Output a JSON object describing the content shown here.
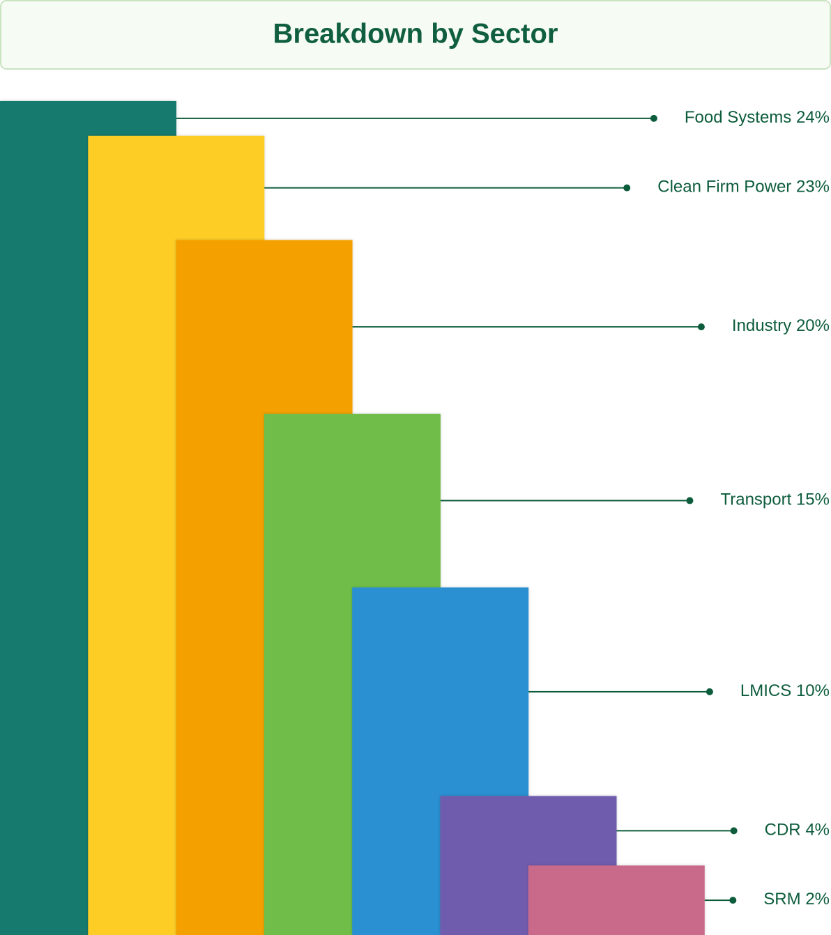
{
  "chart_data": {
    "type": "bar",
    "title": "Breakdown by Sector",
    "categories": [
      "Food Systems",
      "Clean Firm Power",
      "Industry",
      "Transport",
      "LMICS",
      "CDR",
      "SRM"
    ],
    "values": [
      24,
      23,
      20,
      15,
      10,
      4,
      2
    ],
    "value_labels": [
      "24%",
      "23%",
      "20%",
      "15%",
      "10%",
      "4%",
      "2%"
    ],
    "colors": [
      "#157a6e",
      "#fdcd25",
      "#f4a100",
      "#6fbe49",
      "#2a90d2",
      "#6f5cac",
      "#c96b8b"
    ],
    "ylim": [
      0,
      24.5
    ]
  }
}
